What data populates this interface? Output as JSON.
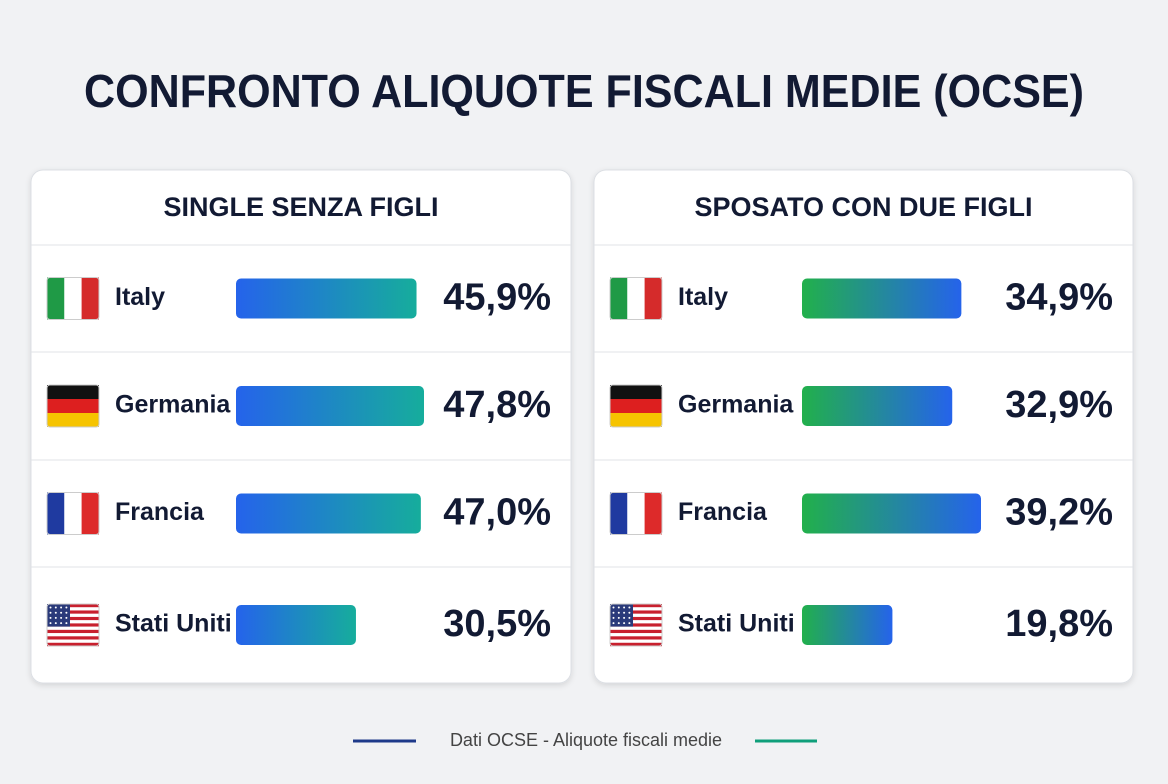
{
  "title": "CONFRONTO ALIQUOTE FISCALI MEDIE (OCSE)",
  "footer": "Dati OCSE - Aliquote fiscali medie",
  "chart_data": [
    {
      "type": "bar",
      "title": "SINGLE SENZA FIGLI",
      "categories": [
        "Italy",
        "Germania",
        "Francia",
        "Stati Uniti"
      ],
      "values": [
        45.9,
        47.8,
        47.0,
        30.5
      ],
      "value_labels": [
        "45,9%",
        "47,8%",
        "47,0%",
        "30,5%"
      ],
      "gradient": [
        "#2563eb",
        "#16ad9c"
      ]
    },
    {
      "type": "bar",
      "title": "SPOSATO CON DUE FIGLI",
      "categories": [
        "Italy",
        "Germania",
        "Francia",
        "Stati Uniti"
      ],
      "values": [
        34.9,
        32.9,
        39.2,
        19.8
      ],
      "value_labels": [
        "34,9%",
        "32,9%",
        "39,2%",
        "19,8%"
      ],
      "gradient": [
        "#22b04b",
        "#2563eb"
      ]
    }
  ]
}
